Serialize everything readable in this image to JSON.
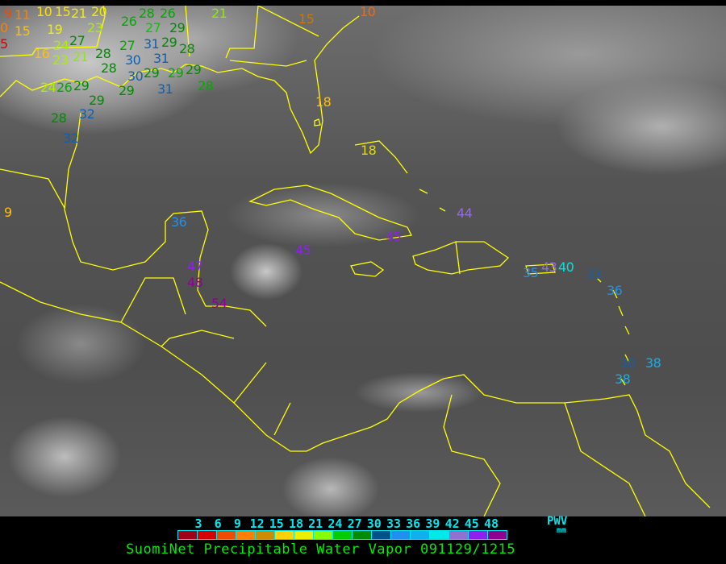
{
  "title": "SuomiNet Precipitable Water Vapor 091129/1215",
  "legend": {
    "unit_label": "PWV",
    "unit": "mm",
    "ticks": [
      "3",
      "6",
      "9",
      "12",
      "15",
      "18",
      "21",
      "24",
      "27",
      "30",
      "33",
      "36",
      "39",
      "42",
      "45",
      "48"
    ],
    "colors": [
      "#a00018",
      "#d80000",
      "#f04c00",
      "#ff8000",
      "#d08c00",
      "#ffd200",
      "#eeee00",
      "#88ff00",
      "#00cc00",
      "#008c00",
      "#00508c",
      "#2090f0",
      "#10b0f0",
      "#00e8e8",
      "#9070d0",
      "#9020f0",
      "#900090"
    ]
  },
  "coastline_color": "#ffff00",
  "stations": [
    {
      "value": "9",
      "color": "#f04c00"
    },
    {
      "value": "11",
      "color": "#ff8000"
    },
    {
      "value": "0",
      "color": "#ff8000"
    },
    {
      "value": "15",
      "color": "#ffc000"
    },
    {
      "value": "5",
      "color": "#d80000"
    },
    {
      "value": "10",
      "color": "#ffe000"
    },
    {
      "value": "15",
      "color": "#ffe000"
    },
    {
      "value": "21",
      "color": "#eeee00"
    },
    {
      "value": "20",
      "color": "#eeee00"
    },
    {
      "value": "23",
      "color": "#aaee00"
    },
    {
      "value": "26",
      "color": "#00aa00"
    },
    {
      "value": "28",
      "color": "#00aa00"
    },
    {
      "value": "27",
      "color": "#00cc00"
    },
    {
      "value": "26",
      "color": "#00aa00"
    },
    {
      "value": "29",
      "color": "#008c00"
    },
    {
      "value": "19",
      "color": "#eeee00"
    },
    {
      "value": "24",
      "color": "#aaee00"
    },
    {
      "value": "27",
      "color": "#008c00"
    },
    {
      "value": "16",
      "color": "#ffc000"
    },
    {
      "value": "23",
      "color": "#aaee00"
    },
    {
      "value": "21",
      "color": "#88ee00"
    },
    {
      "value": "28",
      "color": "#008c00"
    },
    {
      "value": "27",
      "color": "#00aa00"
    },
    {
      "value": "31",
      "color": "#1060b0"
    },
    {
      "value": "29",
      "color": "#008c00"
    },
    {
      "value": "31",
      "color": "#1060b0"
    },
    {
      "value": "28",
      "color": "#008c00"
    },
    {
      "value": "30",
      "color": "#1060b0"
    },
    {
      "value": "29",
      "color": "#008c00"
    },
    {
      "value": "29",
      "color": "#00aa00"
    },
    {
      "value": "28",
      "color": "#008c00"
    },
    {
      "value": "30",
      "color": "#1060b0"
    },
    {
      "value": "31",
      "color": "#1060b0"
    },
    {
      "value": "29",
      "color": "#008c00"
    },
    {
      "value": "28",
      "color": "#00aa00"
    },
    {
      "value": "24",
      "color": "#aaee00"
    },
    {
      "value": "26",
      "color": "#00aa00"
    },
    {
      "value": "29",
      "color": "#008c00"
    },
    {
      "value": "29",
      "color": "#008c00"
    },
    {
      "value": "29",
      "color": "#008c00"
    },
    {
      "value": "28",
      "color": "#008c00"
    },
    {
      "value": "32",
      "color": "#1060b0"
    },
    {
      "value": "32",
      "color": "#1060b0"
    },
    {
      "value": "21",
      "color": "#88ee00"
    },
    {
      "value": "15",
      "color": "#cc7700"
    },
    {
      "value": "10",
      "color": "#ff6600"
    },
    {
      "value": "18",
      "color": "#ffc000"
    },
    {
      "value": "18",
      "color": "#dddd00"
    },
    {
      "value": "9",
      "color": "#ffc000"
    },
    {
      "value": "36",
      "color": "#2090f0"
    },
    {
      "value": "44",
      "color": "#9070d0"
    },
    {
      "value": "45",
      "color": "#9020f0"
    },
    {
      "value": "45",
      "color": "#9020f0"
    },
    {
      "value": "47",
      "color": "#9020f0"
    },
    {
      "value": "48",
      "color": "#900090"
    },
    {
      "value": "54",
      "color": "#900090"
    },
    {
      "value": "35",
      "color": "#2090f0"
    },
    {
      "value": "43",
      "color": "#9070d0"
    },
    {
      "value": "40",
      "color": "#00e0e0"
    },
    {
      "value": "33",
      "color": "#1060b0"
    },
    {
      "value": "36",
      "color": "#2090f0"
    },
    {
      "value": "30",
      "color": "#1060b0"
    },
    {
      "value": "38",
      "color": "#10b0f0"
    },
    {
      "value": "38",
      "color": "#10b0f0"
    }
  ]
}
